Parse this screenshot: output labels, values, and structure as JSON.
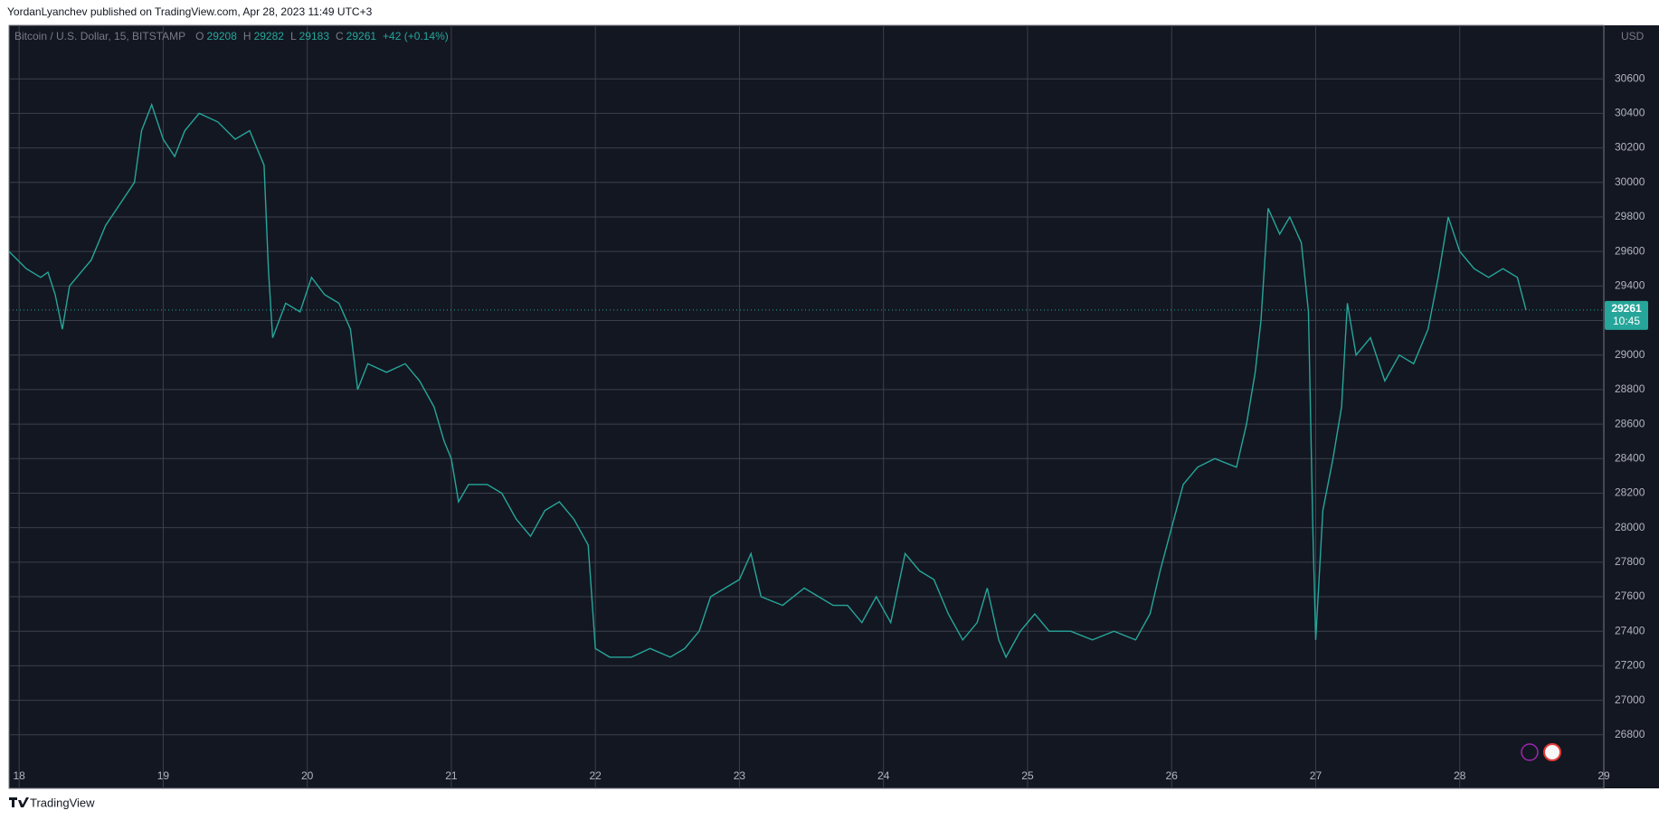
{
  "page": {
    "header": "YordanLyanchev published on TradingView.com, Apr 28, 2023 11:49 UTC+3",
    "footer": "TradingView"
  },
  "chart_data": {
    "type": "line",
    "symbol": "Bitcoin / U.S. Dollar, 15, BITSTAMP",
    "ohlc": [
      {
        "label": "O",
        "value": 29208
      },
      {
        "label": "H",
        "value": 29282
      },
      {
        "label": "L",
        "value": 29183
      },
      {
        "label": "C",
        "value": 29261
      }
    ],
    "change": "+42 (+0.14%)",
    "currency": "USD",
    "last_price": 29261,
    "countdown": "10:45",
    "color": "#26a69a",
    "grid": true,
    "xlim": [
      17.93,
      29.0
    ],
    "xticks": [
      18,
      19,
      20,
      21,
      22,
      23,
      24,
      25,
      26,
      27,
      28,
      29
    ],
    "ylim": [
      26490,
      30910
    ],
    "yticks": [
      26800,
      27000,
      27200,
      27400,
      27600,
      27800,
      28000,
      28200,
      28400,
      28600,
      28800,
      29000,
      29200,
      29400,
      29600,
      29800,
      30000,
      30200,
      30400,
      30600
    ],
    "series": [
      {
        "name": "BTCUSD",
        "color": "#26a69a",
        "x": [
          17.93,
          18.05,
          18.15,
          18.2,
          18.25,
          18.3,
          18.35,
          18.45,
          18.5,
          18.6,
          18.72,
          18.8,
          18.85,
          18.92,
          19.0,
          19.08,
          19.15,
          19.25,
          19.38,
          19.5,
          19.6,
          19.65,
          19.7,
          19.73,
          19.76,
          19.85,
          19.95,
          20.03,
          20.12,
          20.22,
          20.3,
          20.35,
          20.42,
          20.55,
          20.68,
          20.78,
          20.88,
          20.95,
          21.0,
          21.05,
          21.12,
          21.25,
          21.35,
          21.45,
          21.55,
          21.65,
          21.75,
          21.85,
          21.95,
          22.0,
          22.1,
          22.25,
          22.38,
          22.52,
          22.62,
          22.72,
          22.8,
          22.9,
          23.0,
          23.08,
          23.15,
          23.3,
          23.45,
          23.55,
          23.65,
          23.75,
          23.85,
          23.95,
          24.05,
          24.15,
          24.25,
          24.35,
          24.45,
          24.55,
          24.65,
          24.72,
          24.8,
          24.85,
          24.95,
          25.05,
          25.15,
          25.3,
          25.45,
          25.6,
          25.75,
          25.85,
          25.92,
          26.0,
          26.08,
          26.18,
          26.3,
          26.45,
          26.52,
          26.58,
          26.62,
          26.67,
          26.75,
          26.82,
          26.9,
          26.95,
          26.98,
          27.0,
          27.05,
          27.12,
          27.18,
          27.22,
          27.28,
          27.38,
          27.48,
          27.58,
          27.68,
          27.78,
          27.85,
          27.92,
          28.0,
          28.1,
          28.2,
          28.3,
          28.4,
          28.46
        ],
        "values": [
          29600,
          29500,
          29450,
          29480,
          29350,
          29150,
          29400,
          29500,
          29550,
          29750,
          29900,
          30000,
          30300,
          30450,
          30250,
          30150,
          30300,
          30400,
          30350,
          30250,
          30300,
          30200,
          30100,
          29500,
          29100,
          29300,
          29250,
          29450,
          29350,
          29300,
          29150,
          28800,
          28950,
          28900,
          28950,
          28850,
          28700,
          28500,
          28400,
          28150,
          28250,
          28250,
          28200,
          28050,
          27950,
          28100,
          28150,
          28050,
          27900,
          27300,
          27250,
          27250,
          27300,
          27250,
          27300,
          27400,
          27600,
          27650,
          27700,
          27850,
          27600,
          27550,
          27650,
          27600,
          27550,
          27550,
          27450,
          27600,
          27450,
          27850,
          27750,
          27700,
          27500,
          27350,
          27450,
          27650,
          27350,
          27250,
          27400,
          27500,
          27400,
          27400,
          27350,
          27400,
          27350,
          27500,
          27750,
          28000,
          28250,
          28350,
          28400,
          28350,
          28600,
          28900,
          29200,
          29850,
          29700,
          29800,
          29650,
          29250,
          28000,
          27350,
          28100,
          28400,
          28700,
          29300,
          29000,
          29100,
          28850,
          29000,
          28950,
          29150,
          29450,
          29800,
          29600,
          29500,
          29450,
          29500,
          29450,
          29261
        ]
      }
    ]
  }
}
